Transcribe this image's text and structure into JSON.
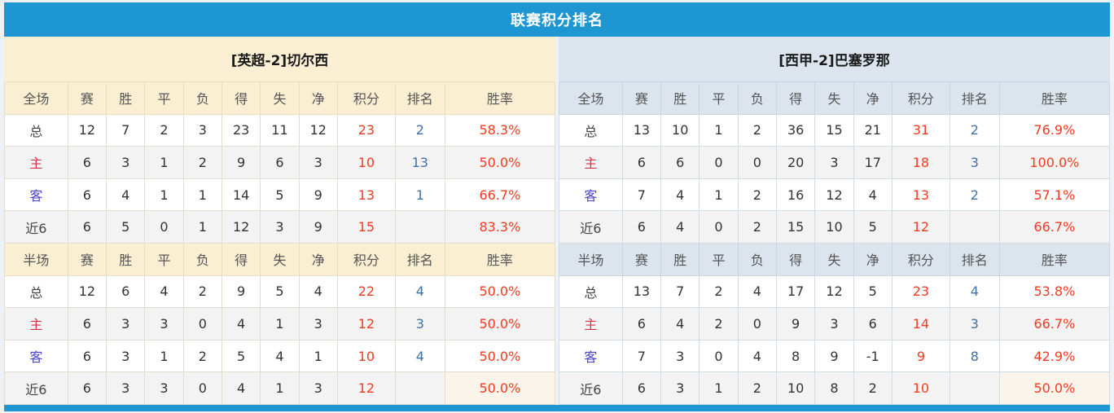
{
  "page_title": "联赛积分排名",
  "colors": {
    "accent_blue": "#1e96d2",
    "cream_header": "#faeed3",
    "blue_header": "#dce4ee",
    "points_red": "#f03b20",
    "rank_blue": "#3e71a8",
    "home_red": "#d5334c",
    "away_blue": "#4a43cc",
    "alt_row_gray": "#f3f3f3",
    "half_last_rate_bg": "#faf4ea"
  },
  "stat_headers": [
    "赛",
    "胜",
    "平",
    "负",
    "得",
    "失",
    "净",
    "积分",
    "排名",
    "胜率"
  ],
  "sections": [
    {
      "key": "full",
      "label": "全场"
    },
    {
      "key": "half",
      "label": "半场"
    }
  ],
  "teams": [
    {
      "name": "[英超-2]切尔西",
      "theme": "cream",
      "full": [
        {
          "label": "总",
          "type": "total",
          "stats": [
            "12",
            "7",
            "2",
            "3",
            "23",
            "11",
            "12"
          ],
          "points": "23",
          "rank": "2",
          "rate": "58.3%"
        },
        {
          "label": "主",
          "type": "home",
          "stats": [
            "6",
            "3",
            "1",
            "2",
            "9",
            "6",
            "3"
          ],
          "points": "10",
          "rank": "13",
          "rate": "50.0%"
        },
        {
          "label": "客",
          "type": "away",
          "stats": [
            "6",
            "4",
            "1",
            "1",
            "14",
            "5",
            "9"
          ],
          "points": "13",
          "rank": "1",
          "rate": "66.7%"
        },
        {
          "label": "近6",
          "type": "last6",
          "stats": [
            "6",
            "5",
            "0",
            "1",
            "12",
            "3",
            "9"
          ],
          "points": "15",
          "rank": "",
          "rate": "83.3%"
        }
      ],
      "half": [
        {
          "label": "总",
          "type": "total",
          "stats": [
            "12",
            "6",
            "4",
            "2",
            "9",
            "5",
            "4"
          ],
          "points": "22",
          "rank": "4",
          "rate": "50.0%"
        },
        {
          "label": "主",
          "type": "home",
          "stats": [
            "6",
            "3",
            "3",
            "0",
            "4",
            "1",
            "3"
          ],
          "points": "12",
          "rank": "3",
          "rate": "50.0%"
        },
        {
          "label": "客",
          "type": "away",
          "stats": [
            "6",
            "3",
            "1",
            "2",
            "5",
            "4",
            "1"
          ],
          "points": "10",
          "rank": "4",
          "rate": "50.0%"
        },
        {
          "label": "近6",
          "type": "last6",
          "stats": [
            "6",
            "3",
            "3",
            "0",
            "4",
            "1",
            "3"
          ],
          "points": "12",
          "rank": "",
          "rate": "50.0%"
        }
      ]
    },
    {
      "name": "[西甲-2]巴塞罗那",
      "theme": "blue",
      "full": [
        {
          "label": "总",
          "type": "total",
          "stats": [
            "13",
            "10",
            "1",
            "2",
            "36",
            "15",
            "21"
          ],
          "points": "31",
          "rank": "2",
          "rate": "76.9%"
        },
        {
          "label": "主",
          "type": "home",
          "stats": [
            "6",
            "6",
            "0",
            "0",
            "20",
            "3",
            "17"
          ],
          "points": "18",
          "rank": "3",
          "rate": "100.0%"
        },
        {
          "label": "客",
          "type": "away",
          "stats": [
            "7",
            "4",
            "1",
            "2",
            "16",
            "12",
            "4"
          ],
          "points": "13",
          "rank": "2",
          "rate": "57.1%"
        },
        {
          "label": "近6",
          "type": "last6",
          "stats": [
            "6",
            "4",
            "0",
            "2",
            "15",
            "10",
            "5"
          ],
          "points": "12",
          "rank": "",
          "rate": "66.7%"
        }
      ],
      "half": [
        {
          "label": "总",
          "type": "total",
          "stats": [
            "13",
            "7",
            "2",
            "4",
            "17",
            "12",
            "5"
          ],
          "points": "23",
          "rank": "4",
          "rate": "53.8%"
        },
        {
          "label": "主",
          "type": "home",
          "stats": [
            "6",
            "4",
            "2",
            "0",
            "9",
            "3",
            "6"
          ],
          "points": "14",
          "rank": "3",
          "rate": "66.7%"
        },
        {
          "label": "客",
          "type": "away",
          "stats": [
            "7",
            "3",
            "0",
            "4",
            "8",
            "9",
            "-1"
          ],
          "points": "9",
          "rank": "8",
          "rate": "42.9%"
        },
        {
          "label": "近6",
          "type": "last6",
          "stats": [
            "6",
            "3",
            "1",
            "2",
            "10",
            "8",
            "2"
          ],
          "points": "10",
          "rank": "",
          "rate": "50.0%"
        }
      ]
    }
  ]
}
